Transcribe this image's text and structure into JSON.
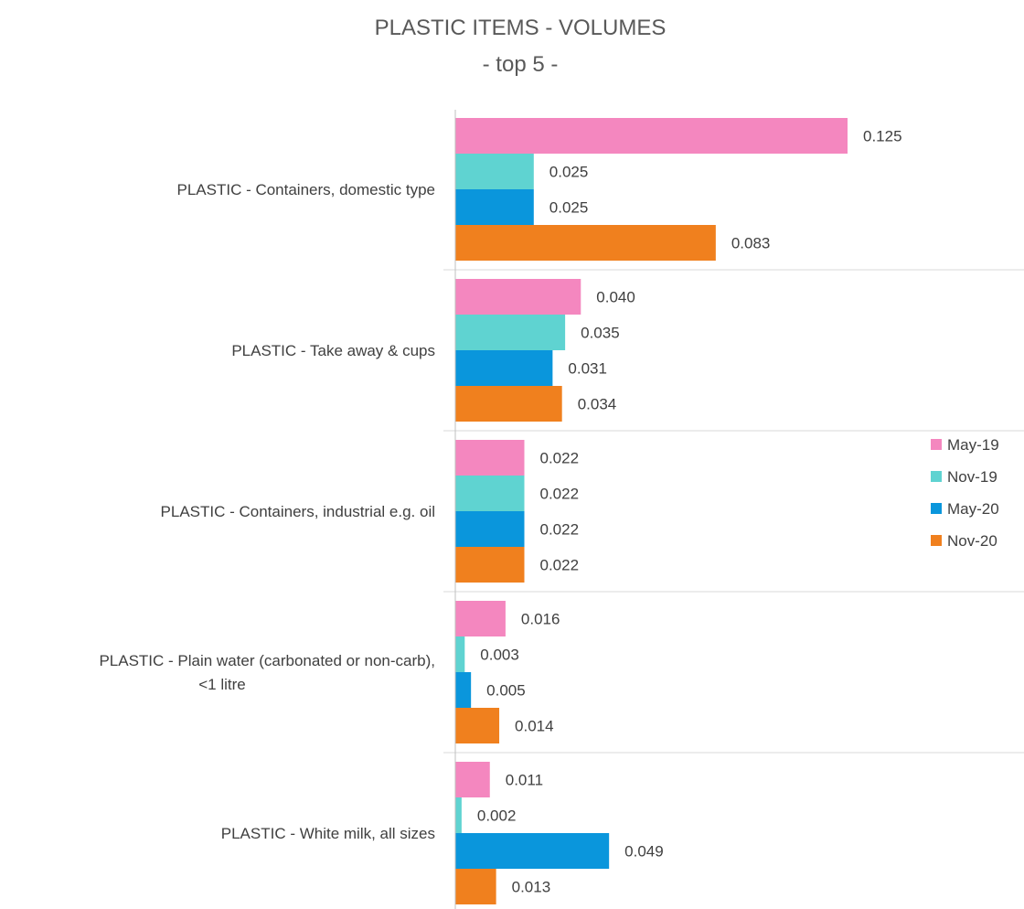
{
  "chart_data": {
    "type": "bar",
    "orientation": "horizontal",
    "title": "PLASTIC ITEMS - VOLUMES",
    "subtitle": "- top 5 -",
    "categories": [
      [
        "PLASTIC - Containers, domestic type"
      ],
      [
        "PLASTIC - Take away & cups"
      ],
      [
        "PLASTIC - Containers, industrial e.g. oil"
      ],
      [
        "PLASTIC - Plain water (carbonated or non-carb),",
        "<1 litre"
      ],
      [
        "PLASTIC - White milk, all sizes"
      ]
    ],
    "series": [
      {
        "name": "May-19",
        "color": "#f487bf",
        "values": [
          0.125,
          0.04,
          0.022,
          0.016,
          0.011
        ],
        "labels": [
          "0.125",
          "0.040",
          "0.022",
          "0.016",
          "0.011"
        ]
      },
      {
        "name": "Nov-19",
        "color": "#5fd3d1",
        "values": [
          0.025,
          0.035,
          0.022,
          0.003,
          0.002
        ],
        "labels": [
          "0.025",
          "0.035",
          "0.022",
          "0.003",
          "0.002"
        ]
      },
      {
        "name": "May-20",
        "color": "#0a96dc",
        "values": [
          0.025,
          0.031,
          0.022,
          0.005,
          0.049
        ],
        "labels": [
          "0.025",
          "0.031",
          "0.022",
          "0.005",
          "0.049"
        ]
      },
      {
        "name": "Nov-20",
        "color": "#f0801e",
        "values": [
          0.083,
          0.034,
          0.022,
          0.014,
          0.013
        ],
        "labels": [
          "0.083",
          "0.034",
          "0.022",
          "0.014",
          "0.013"
        ]
      }
    ],
    "xlim": [
      0,
      0.125
    ],
    "grid": false,
    "legend": "right"
  }
}
